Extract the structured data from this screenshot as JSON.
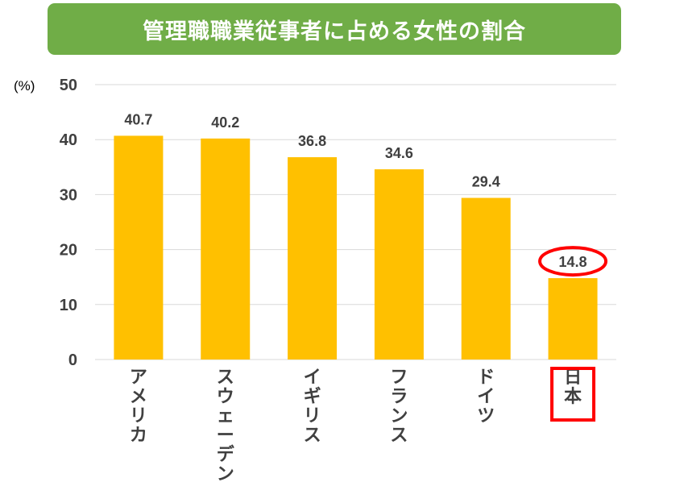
{
  "title": "管理職職業従事者に占める女性の割合",
  "colors": {
    "banner": "#70ad47",
    "bar": "#ffc000",
    "highlight": "#ff0000",
    "grid": "#d9d9d9",
    "text": "#404040"
  },
  "chart_data": {
    "type": "bar",
    "title": "管理職職業従事者に占める女性の割合",
    "ylabel": "(%)",
    "xlabel": "",
    "ylim": [
      0,
      50
    ],
    "yticks": [
      0,
      10,
      20,
      30,
      40,
      50
    ],
    "grid": true,
    "categories": [
      "アメリカ",
      "スウェーデン",
      "イギリス",
      "フランス",
      "ドイツ",
      "日本"
    ],
    "values": [
      40.7,
      40.2,
      36.8,
      34.6,
      29.4,
      14.8
    ],
    "value_labels": [
      "40.7",
      "40.2",
      "36.8",
      "34.6",
      "29.4",
      "14.8"
    ],
    "highlighted_category": "日本"
  }
}
